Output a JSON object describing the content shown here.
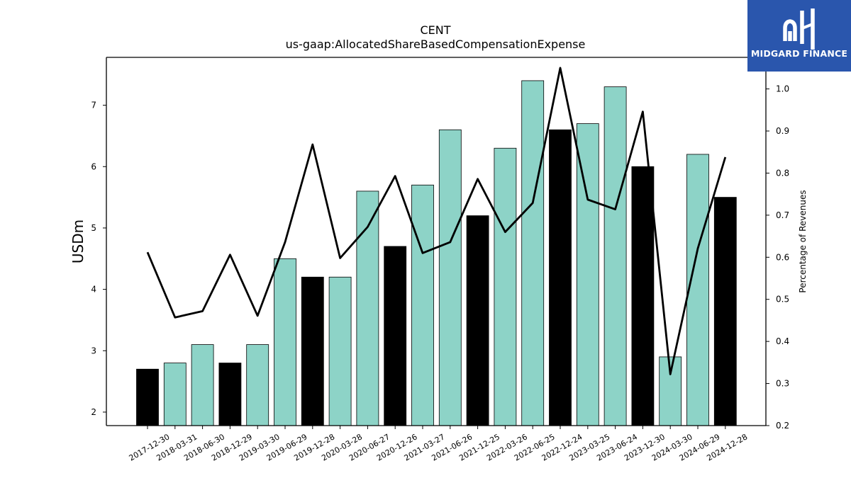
{
  "brand": {
    "logo_text": "MIDGARD FINANCE",
    "logo_color": "#2a56ad"
  },
  "chart_data": {
    "type": "bar",
    "title": "CENT",
    "subtitle": "us-gaap:AllocatedShareBasedCompensationExpense",
    "ylabel": "USDm",
    "y2label": "Percentage of Revenues",
    "ylim": [
      1.78,
      7.78
    ],
    "y2lim": [
      0.2,
      1.075
    ],
    "yticks": [
      2,
      3,
      4,
      5,
      6,
      7
    ],
    "y2ticks": [
      0.2,
      0.3,
      0.4,
      0.5,
      0.6,
      0.7,
      0.8,
      0.9,
      1.0
    ],
    "categories": [
      "2017-12-30",
      "2018-03-31",
      "2018-06-30",
      "2018-12-29",
      "2019-03-30",
      "2019-06-29",
      "2019-12-28",
      "2020-03-28",
      "2020-06-27",
      "2020-12-26",
      "2021-03-27",
      "2021-06-26",
      "2021-12-25",
      "2022-03-26",
      "2022-06-25",
      "2022-12-24",
      "2023-03-25",
      "2023-06-24",
      "2023-12-30",
      "2024-03-30",
      "2024-06-29",
      "2024-12-28"
    ],
    "series": [
      {
        "kind": "bar",
        "values": [
          2.7,
          2.8,
          3.1,
          2.8,
          3.1,
          4.5,
          4.2,
          4.2,
          5.6,
          4.7,
          5.7,
          6.6,
          5.2,
          6.3,
          7.4,
          6.6,
          6.7,
          7.3,
          6.0,
          2.9,
          6.2,
          5.5
        ],
        "highlight": [
          true,
          false,
          false,
          true,
          false,
          false,
          true,
          false,
          false,
          true,
          false,
          false,
          true,
          false,
          false,
          true,
          false,
          false,
          true,
          false,
          false,
          true
        ],
        "color": "#8dd3c7",
        "highlight_color": "#000000"
      },
      {
        "kind": "line",
        "axis": "right",
        "values": [
          0.612,
          0.457,
          0.472,
          0.606,
          0.461,
          0.636,
          0.868,
          0.598,
          0.672,
          0.793,
          0.61,
          0.636,
          0.786,
          0.66,
          0.729,
          1.05,
          0.737,
          0.714,
          0.946,
          0.322,
          0.621,
          0.838
        ],
        "color": "#000000"
      }
    ]
  }
}
